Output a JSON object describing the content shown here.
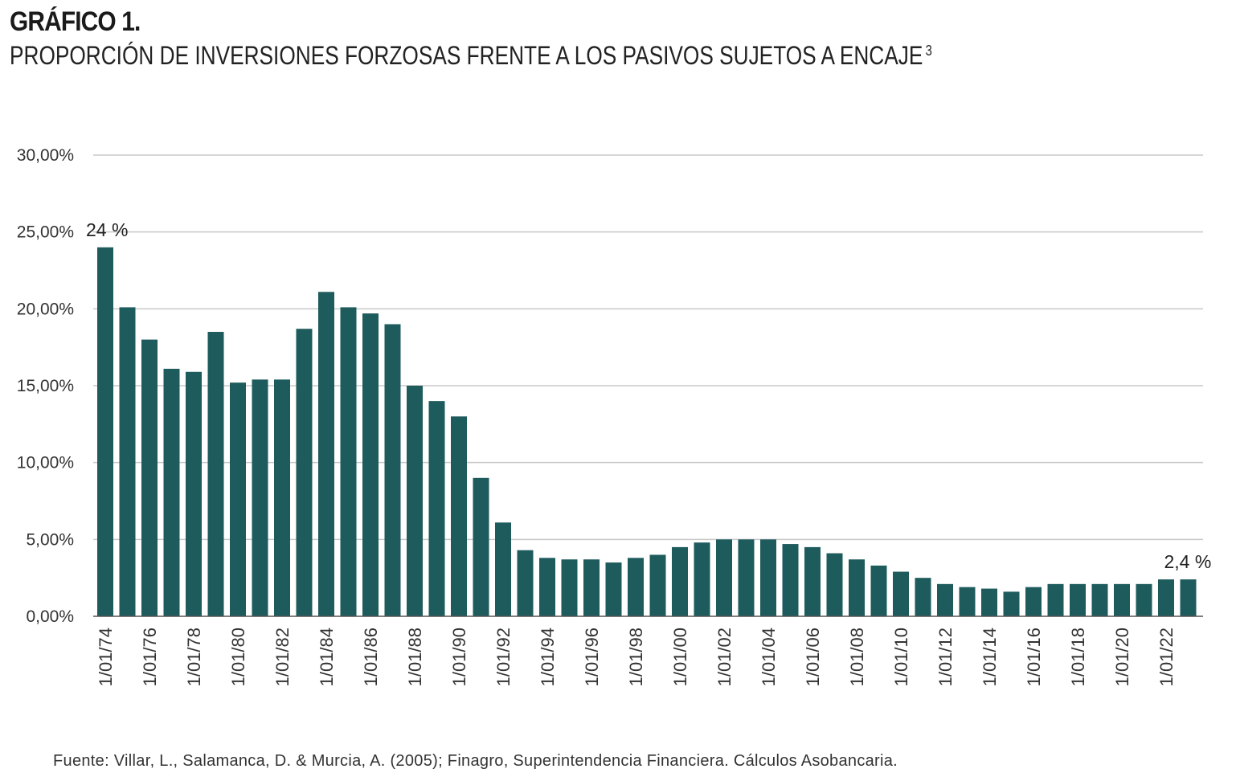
{
  "header": {
    "figure_label": "GRÁFICO 1.",
    "title": "PROPORCIÓN DE INVERSIONES FORZOSAS FRENTE A LOS PASIVOS SUJETOS A ENCAJE",
    "footnote_mark": "3"
  },
  "source": "Fuente: Villar, L., Salamanca, D. & Murcia, A. (2005); Finagro, Superintendencia Financiera. Cálculos Asobancaria.",
  "colors": {
    "bar": "#1e5b5c",
    "grid": "#c8c8c8",
    "axis": "#555555",
    "text": "#333333"
  },
  "chart_data": {
    "type": "bar",
    "title": "PROPORCIÓN DE INVERSIONES FORZOSAS FRENTE A LOS PASIVOS SUJETOS A ENCAJE",
    "xlabel": "",
    "ylabel": "",
    "ylim": [
      0,
      30
    ],
    "yticks": [
      "0,00%",
      "5,00%",
      "10,00%",
      "15,00%",
      "20,00%",
      "25,00%",
      "30,00%"
    ],
    "grid": true,
    "legend": "none",
    "categories": [
      "1/01/74",
      "1/01/75",
      "1/01/76",
      "1/01/77",
      "1/01/78",
      "1/01/79",
      "1/01/80",
      "1/01/81",
      "1/01/82",
      "1/01/83",
      "1/01/84",
      "1/01/85",
      "1/01/86",
      "1/01/87",
      "1/01/88",
      "1/01/89",
      "1/01/90",
      "1/01/91",
      "1/01/92",
      "1/01/93",
      "1/01/94",
      "1/01/95",
      "1/01/96",
      "1/01/97",
      "1/01/98",
      "1/01/99",
      "1/01/00",
      "1/01/01",
      "1/01/02",
      "1/01/03",
      "1/01/04",
      "1/01/05",
      "1/01/06",
      "1/01/07",
      "1/01/08",
      "1/01/09",
      "1/01/10",
      "1/01/11",
      "1/01/12",
      "1/01/13",
      "1/01/14",
      "1/01/15",
      "1/01/16",
      "1/01/17",
      "1/01/18",
      "1/01/19",
      "1/01/20",
      "1/01/21",
      "1/01/22",
      "1/01/23"
    ],
    "xtick_labels": [
      "1/01/74",
      "1/01/76",
      "1/01/78",
      "1/01/80",
      "1/01/82",
      "1/01/84",
      "1/01/86",
      "1/01/88",
      "1/01/90",
      "1/01/92",
      "1/01/94",
      "1/01/96",
      "1/01/98",
      "1/01/00",
      "1/01/02",
      "1/01/04",
      "1/01/06",
      "1/01/08",
      "1/01/10",
      "1/01/12",
      "1/01/14",
      "1/01/16",
      "1/01/18",
      "1/01/20",
      "1/01/22"
    ],
    "values": [
      24.0,
      20.1,
      18.0,
      16.1,
      15.9,
      18.5,
      15.2,
      15.4,
      15.4,
      18.7,
      21.1,
      20.1,
      19.7,
      19.0,
      15.0,
      14.0,
      13.0,
      9.0,
      6.1,
      4.3,
      3.8,
      3.7,
      3.7,
      3.5,
      3.8,
      4.0,
      4.5,
      4.8,
      5.0,
      5.0,
      5.0,
      4.7,
      4.5,
      4.1,
      3.7,
      3.3,
      2.9,
      2.5,
      2.1,
      1.9,
      1.8,
      1.6,
      1.9,
      2.1,
      2.1,
      2.1,
      2.1,
      2.1,
      2.4,
      2.4
    ],
    "annotations": [
      {
        "text": "24 %",
        "category": "1/01/74",
        "value": 24.0
      },
      {
        "text": "2,4 %",
        "category": "1/01/23",
        "value": 2.4
      }
    ]
  }
}
